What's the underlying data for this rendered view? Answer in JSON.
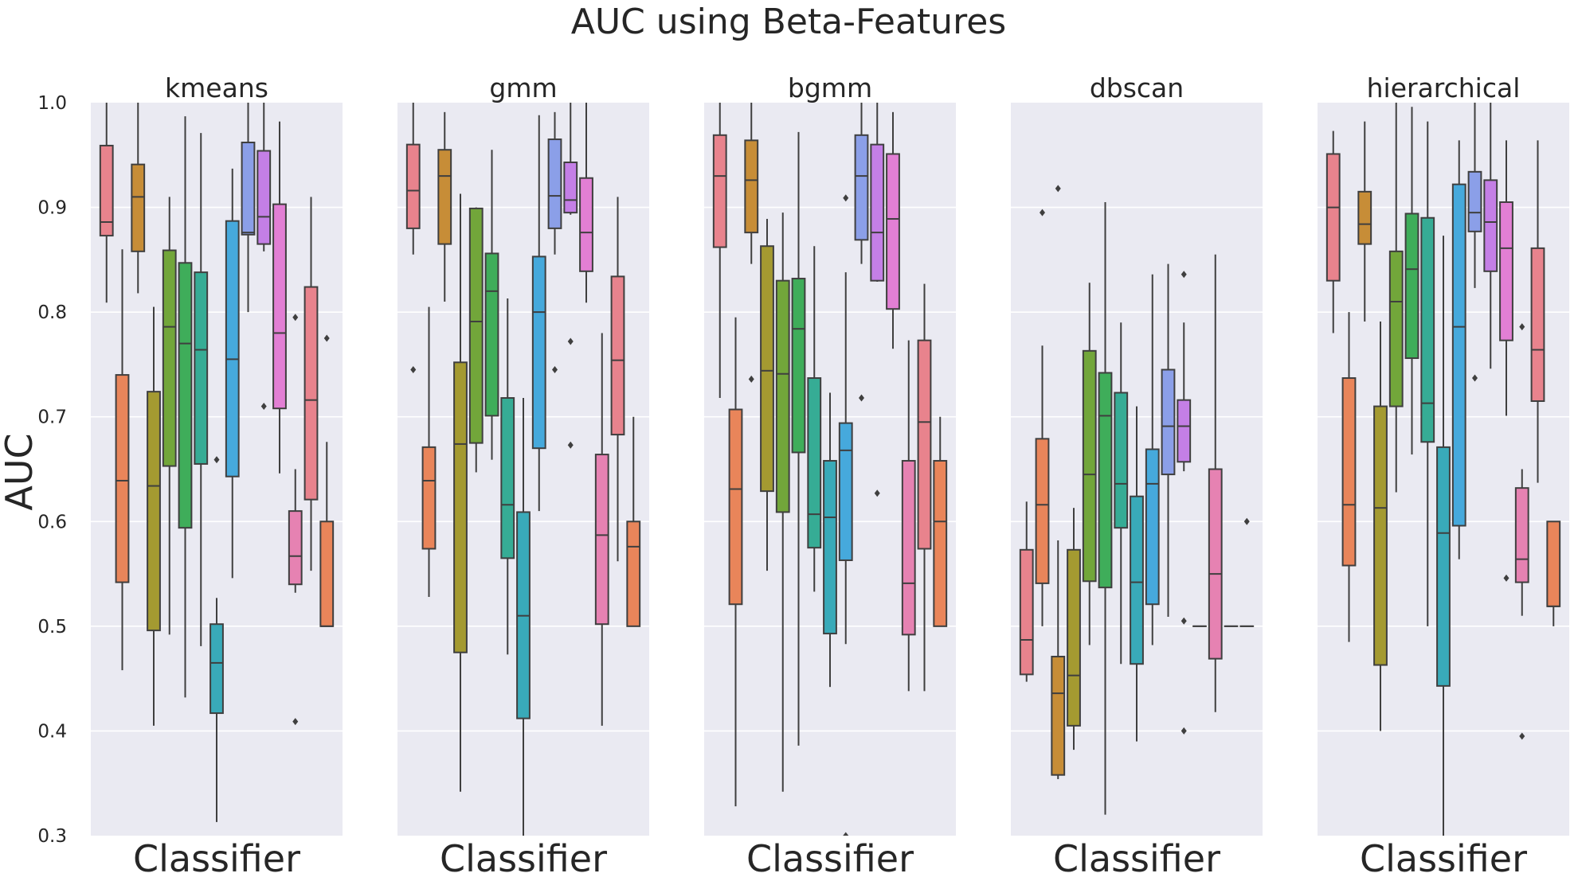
{
  "chart_data": {
    "type": "box",
    "title": "AUC using Beta-Features",
    "ylabel": "AUC",
    "xlabel": "Classifier",
    "ylim": [
      0.3,
      1.0
    ],
    "yticks": [
      "0.3",
      "0.4",
      "0.5",
      "0.6",
      "0.7",
      "0.8",
      "0.9",
      "1.0"
    ],
    "grid": true,
    "shared_y": true,
    "colors": [
      "#e8838d",
      "#e9855a",
      "#c78d37",
      "#a49a31",
      "#72a63a",
      "#3fad5a",
      "#36ac95",
      "#39aab9",
      "#46a9dc",
      "#8b9fe8",
      "#c47fe6",
      "#e27fd4",
      "#e682b2"
    ],
    "panels": [
      {
        "title": "kmeans",
        "boxes": [
          {
            "q1": 0.873,
            "median": 0.886,
            "q3": 0.959,
            "lo": 0.809,
            "hi": 1.0,
            "fliers": []
          },
          {
            "q1": 0.542,
            "median": 0.639,
            "q3": 0.74,
            "lo": 0.458,
            "hi": 0.86,
            "fliers": []
          },
          {
            "q1": 0.858,
            "median": 0.91,
            "q3": 0.941,
            "lo": 0.818,
            "hi": 1.0,
            "fliers": []
          },
          {
            "q1": 0.496,
            "median": 0.634,
            "q3": 0.724,
            "lo": 0.405,
            "hi": 0.805,
            "fliers": []
          },
          {
            "q1": 0.653,
            "median": 0.786,
            "q3": 0.859,
            "lo": 0.492,
            "hi": 0.91,
            "fliers": []
          },
          {
            "q1": 0.594,
            "median": 0.77,
            "q3": 0.847,
            "lo": 0.432,
            "hi": 0.987,
            "fliers": []
          },
          {
            "q1": 0.655,
            "median": 0.764,
            "q3": 0.838,
            "lo": 0.481,
            "hi": 0.971,
            "fliers": []
          },
          {
            "q1": 0.417,
            "median": 0.465,
            "q3": 0.502,
            "lo": 0.313,
            "hi": 0.527,
            "fliers": [
              0.659
            ]
          },
          {
            "q1": 0.643,
            "median": 0.755,
            "q3": 0.887,
            "lo": 0.546,
            "hi": 0.937,
            "fliers": []
          },
          {
            "q1": 0.874,
            "median": 0.876,
            "q3": 0.962,
            "lo": 0.8,
            "hi": 1.0,
            "fliers": []
          },
          {
            "q1": 0.865,
            "median": 0.891,
            "q3": 0.954,
            "lo": 0.858,
            "hi": 1.0,
            "fliers": [
              0.71
            ]
          },
          {
            "q1": 0.708,
            "median": 0.78,
            "q3": 0.903,
            "lo": 0.646,
            "hi": 0.982,
            "fliers": []
          },
          {
            "q1": 0.54,
            "median": 0.567,
            "q3": 0.61,
            "lo": 0.532,
            "hi": 0.65,
            "fliers": [
              0.795,
              0.409
            ]
          },
          {
            "q1": 0.621,
            "median": 0.716,
            "q3": 0.824,
            "lo": 0.553,
            "hi": 0.91,
            "fliers": []
          },
          {
            "q1": 0.5,
            "median": 0.5,
            "q3": 0.6,
            "lo": 0.5,
            "hi": 0.676,
            "fliers": [
              0.775
            ]
          }
        ]
      },
      {
        "title": "gmm",
        "boxes": [
          {
            "q1": 0.88,
            "median": 0.916,
            "q3": 0.96,
            "lo": 0.855,
            "hi": 1.0,
            "fliers": [
              0.745
            ]
          },
          {
            "q1": 0.574,
            "median": 0.639,
            "q3": 0.671,
            "lo": 0.528,
            "hi": 0.805,
            "fliers": []
          },
          {
            "q1": 0.865,
            "median": 0.93,
            "q3": 0.955,
            "lo": 0.81,
            "hi": 0.991,
            "fliers": []
          },
          {
            "q1": 0.475,
            "median": 0.674,
            "q3": 0.752,
            "lo": 0.342,
            "hi": 0.913,
            "fliers": []
          },
          {
            "q1": 0.675,
            "median": 0.791,
            "q3": 0.899,
            "lo": 0.647,
            "hi": 0.9,
            "fliers": []
          },
          {
            "q1": 0.701,
            "median": 0.82,
            "q3": 0.856,
            "lo": 0.659,
            "hi": 0.955,
            "fliers": []
          },
          {
            "q1": 0.565,
            "median": 0.616,
            "q3": 0.718,
            "lo": 0.473,
            "hi": 0.813,
            "fliers": []
          },
          {
            "q1": 0.412,
            "median": 0.51,
            "q3": 0.609,
            "lo": 0.3,
            "hi": 0.718,
            "fliers": []
          },
          {
            "q1": 0.67,
            "median": 0.8,
            "q3": 0.853,
            "lo": 0.61,
            "hi": 0.988,
            "fliers": []
          },
          {
            "q1": 0.88,
            "median": 0.911,
            "q3": 0.965,
            "lo": 0.855,
            "hi": 0.991,
            "fliers": [
              0.745
            ]
          },
          {
            "q1": 0.895,
            "median": 0.907,
            "q3": 0.943,
            "lo": 0.893,
            "hi": 1.0,
            "fliers": [
              0.772,
              0.673
            ]
          },
          {
            "q1": 0.839,
            "median": 0.876,
            "q3": 0.928,
            "lo": 0.809,
            "hi": 1.0,
            "fliers": []
          },
          {
            "q1": 0.502,
            "median": 0.587,
            "q3": 0.664,
            "lo": 0.405,
            "hi": 0.78,
            "fliers": []
          },
          {
            "q1": 0.683,
            "median": 0.754,
            "q3": 0.834,
            "lo": 0.562,
            "hi": 0.91,
            "fliers": []
          },
          {
            "q1": 0.5,
            "median": 0.576,
            "q3": 0.6,
            "lo": 0.5,
            "hi": 0.7,
            "fliers": []
          }
        ]
      },
      {
        "title": "bgmm",
        "boxes": [
          {
            "q1": 0.862,
            "median": 0.93,
            "q3": 0.969,
            "lo": 0.718,
            "hi": 1.0,
            "fliers": []
          },
          {
            "q1": 0.521,
            "median": 0.631,
            "q3": 0.707,
            "lo": 0.328,
            "hi": 0.795,
            "fliers": []
          },
          {
            "q1": 0.876,
            "median": 0.926,
            "q3": 0.964,
            "lo": 0.846,
            "hi": 1.0,
            "fliers": [
              0.736
            ]
          },
          {
            "q1": 0.629,
            "median": 0.744,
            "q3": 0.863,
            "lo": 0.553,
            "hi": 0.889,
            "fliers": []
          },
          {
            "q1": 0.609,
            "median": 0.741,
            "q3": 0.83,
            "lo": 0.342,
            "hi": 0.895,
            "fliers": []
          },
          {
            "q1": 0.666,
            "median": 0.784,
            "q3": 0.832,
            "lo": 0.386,
            "hi": 0.972,
            "fliers": []
          },
          {
            "q1": 0.575,
            "median": 0.607,
            "q3": 0.737,
            "lo": 0.533,
            "hi": 0.863,
            "fliers": []
          },
          {
            "q1": 0.493,
            "median": 0.604,
            "q3": 0.658,
            "lo": 0.442,
            "hi": 0.723,
            "fliers": []
          },
          {
            "q1": 0.563,
            "median": 0.668,
            "q3": 0.694,
            "lo": 0.483,
            "hi": 0.838,
            "fliers": [
              0.909,
              0.3
            ]
          },
          {
            "q1": 0.869,
            "median": 0.93,
            "q3": 0.969,
            "lo": 0.846,
            "hi": 1.0,
            "fliers": [
              0.718
            ]
          },
          {
            "q1": 0.83,
            "median": 0.876,
            "q3": 0.96,
            "lo": 0.829,
            "hi": 1.0,
            "fliers": [
              0.627
            ]
          },
          {
            "q1": 0.803,
            "median": 0.889,
            "q3": 0.951,
            "lo": 0.765,
            "hi": 0.991,
            "fliers": []
          },
          {
            "q1": 0.492,
            "median": 0.541,
            "q3": 0.658,
            "lo": 0.438,
            "hi": 0.773,
            "fliers": []
          },
          {
            "q1": 0.574,
            "median": 0.695,
            "q3": 0.773,
            "lo": 0.438,
            "hi": 0.827,
            "fliers": []
          },
          {
            "q1": 0.5,
            "median": 0.6,
            "q3": 0.658,
            "lo": 0.5,
            "hi": 0.7,
            "fliers": []
          }
        ]
      },
      {
        "title": "dbscan",
        "boxes": [
          {
            "q1": 0.454,
            "median": 0.487,
            "q3": 0.573,
            "lo": 0.447,
            "hi": 0.619,
            "fliers": []
          },
          {
            "q1": 0.541,
            "median": 0.616,
            "q3": 0.679,
            "lo": 0.5,
            "hi": 0.768,
            "fliers": [
              0.895
            ]
          },
          {
            "q1": 0.358,
            "median": 0.436,
            "q3": 0.471,
            "lo": 0.354,
            "hi": 0.582,
            "fliers": [
              0.918
            ]
          },
          {
            "q1": 0.405,
            "median": 0.453,
            "q3": 0.573,
            "lo": 0.382,
            "hi": 0.613,
            "fliers": []
          },
          {
            "q1": 0.543,
            "median": 0.645,
            "q3": 0.763,
            "lo": 0.482,
            "hi": 0.828,
            "fliers": []
          },
          {
            "q1": 0.537,
            "median": 0.701,
            "q3": 0.742,
            "lo": 0.32,
            "hi": 0.905,
            "fliers": []
          },
          {
            "q1": 0.594,
            "median": 0.636,
            "q3": 0.723,
            "lo": 0.464,
            "hi": 0.79,
            "fliers": []
          },
          {
            "q1": 0.464,
            "median": 0.542,
            "q3": 0.624,
            "lo": 0.39,
            "hi": 0.71,
            "fliers": []
          },
          {
            "q1": 0.521,
            "median": 0.636,
            "q3": 0.669,
            "lo": 0.482,
            "hi": 0.836,
            "fliers": []
          },
          {
            "q1": 0.645,
            "median": 0.691,
            "q3": 0.745,
            "lo": 0.509,
            "hi": 0.846,
            "fliers": []
          },
          {
            "q1": 0.657,
            "median": 0.691,
            "q3": 0.716,
            "lo": 0.648,
            "hi": 0.79,
            "fliers": [
              0.836,
              0.505,
              0.4
            ]
          },
          {
            "q1": 0.5,
            "median": 0.5,
            "q3": 0.5,
            "lo": 0.5,
            "hi": 0.5,
            "fliers": []
          },
          {
            "q1": 0.469,
            "median": 0.55,
            "q3": 0.65,
            "lo": 0.418,
            "hi": 0.855,
            "fliers": []
          },
          {
            "q1": 0.5,
            "median": 0.5,
            "q3": 0.5,
            "lo": 0.5,
            "hi": 0.5,
            "fliers": []
          },
          {
            "q1": 0.5,
            "median": 0.5,
            "q3": 0.5,
            "lo": 0.5,
            "hi": 0.5,
            "fliers": [
              0.6
            ]
          }
        ]
      },
      {
        "title": "hierarchical",
        "boxes": [
          {
            "q1": 0.83,
            "median": 0.9,
            "q3": 0.951,
            "lo": 0.78,
            "hi": 0.973,
            "fliers": []
          },
          {
            "q1": 0.558,
            "median": 0.616,
            "q3": 0.737,
            "lo": 0.485,
            "hi": 0.8,
            "fliers": []
          },
          {
            "q1": 0.865,
            "median": 0.884,
            "q3": 0.915,
            "lo": 0.791,
            "hi": 0.982,
            "fliers": []
          },
          {
            "q1": 0.463,
            "median": 0.613,
            "q3": 0.71,
            "lo": 0.4,
            "hi": 0.791,
            "fliers": []
          },
          {
            "q1": 0.71,
            "median": 0.81,
            "q3": 0.858,
            "lo": 0.628,
            "hi": 1.0,
            "fliers": []
          },
          {
            "q1": 0.756,
            "median": 0.841,
            "q3": 0.894,
            "lo": 0.664,
            "hi": 0.996,
            "fliers": []
          },
          {
            "q1": 0.676,
            "median": 0.713,
            "q3": 0.89,
            "lo": 0.5,
            "hi": 0.982,
            "fliers": []
          },
          {
            "q1": 0.443,
            "median": 0.589,
            "q3": 0.671,
            "lo": 0.3,
            "hi": 0.873,
            "fliers": []
          },
          {
            "q1": 0.596,
            "median": 0.786,
            "q3": 0.922,
            "lo": 0.564,
            "hi": 0.964,
            "fliers": []
          },
          {
            "q1": 0.877,
            "median": 0.895,
            "q3": 0.934,
            "lo": 0.823,
            "hi": 1.0,
            "fliers": [
              0.737
            ]
          },
          {
            "q1": 0.839,
            "median": 0.886,
            "q3": 0.926,
            "lo": 0.746,
            "hi": 1.0,
            "fliers": []
          },
          {
            "q1": 0.773,
            "median": 0.861,
            "q3": 0.905,
            "lo": 0.701,
            "hi": 0.964,
            "fliers": [
              0.546
            ]
          },
          {
            "q1": 0.542,
            "median": 0.564,
            "q3": 0.632,
            "lo": 0.51,
            "hi": 0.65,
            "fliers": [
              0.786,
              0.395
            ]
          },
          {
            "q1": 0.715,
            "median": 0.764,
            "q3": 0.861,
            "lo": 0.637,
            "hi": 0.964,
            "fliers": []
          },
          {
            "q1": 0.519,
            "median": 0.519,
            "q3": 0.6,
            "lo": 0.5,
            "hi": 0.6,
            "fliers": []
          }
        ]
      }
    ]
  }
}
